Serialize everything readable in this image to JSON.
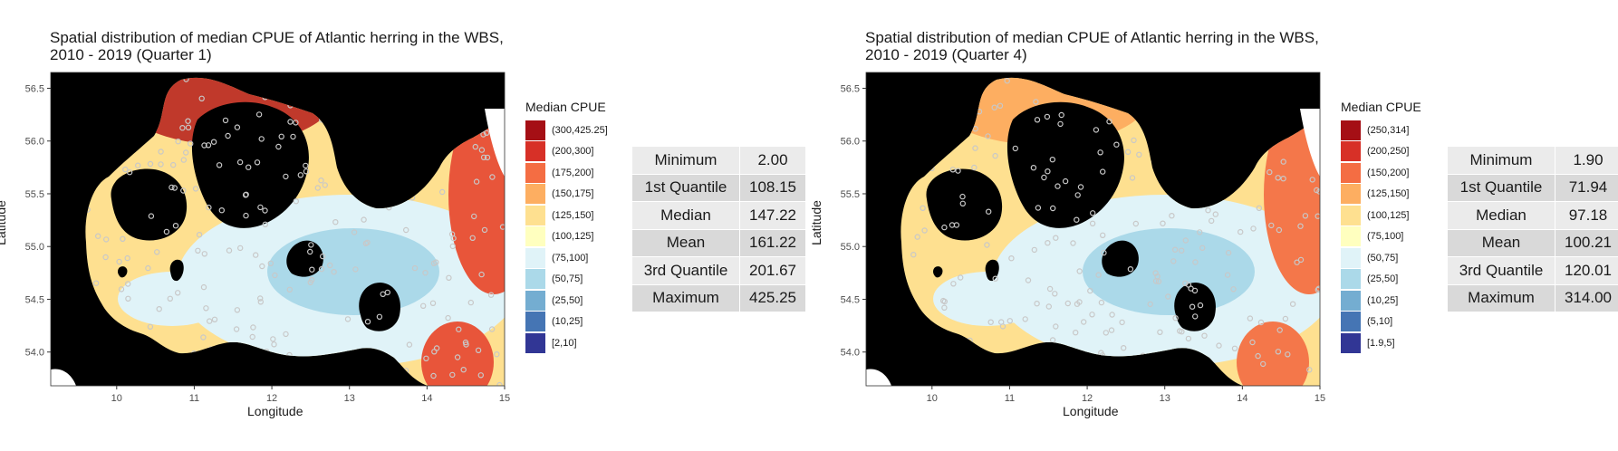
{
  "panels": [
    {
      "title_line1": "Spatial distribution of median CPUE of Atlantic herring in the WBS,",
      "title_line2": "2010 - 2019 (Quarter 1)",
      "xlabel": "Longitude",
      "ylabel": "Latitude",
      "x_ticks": [
        "10",
        "11",
        "12",
        "13",
        "14",
        "15"
      ],
      "y_ticks": [
        "56.5",
        "56.0",
        "55.5",
        "55.0",
        "54.5",
        "54.0"
      ],
      "legend_title": "Median CPUE",
      "legend": [
        {
          "label": "(300,425.25]",
          "color": "#a50f15"
        },
        {
          "label": "(200,300]",
          "color": "#d73027"
        },
        {
          "label": "(175,200]",
          "color": "#f46d43"
        },
        {
          "label": "(150,175]",
          "color": "#fdae61"
        },
        {
          "label": "(125,150]",
          "color": "#fee090"
        },
        {
          "label": "(100,125]",
          "color": "#ffffbf"
        },
        {
          "label": "(75,100]",
          "color": "#e0f3f8"
        },
        {
          "label": "(50,75]",
          "color": "#abd9e9"
        },
        {
          "label": "(25,50]",
          "color": "#74add1"
        },
        {
          "label": "(10,25]",
          "color": "#4575b4"
        },
        {
          "label": "[2,10]",
          "color": "#313695"
        }
      ],
      "stats": [
        {
          "name": "Minimum",
          "value": "2.00"
        },
        {
          "name": "1st Quantile",
          "value": "108.15"
        },
        {
          "name": "Median",
          "value": "147.22"
        },
        {
          "name": "Mean",
          "value": "161.22"
        },
        {
          "name": "3rd Quantile",
          "value": "201.67"
        },
        {
          "name": "Maximum",
          "value": "425.25"
        }
      ]
    },
    {
      "title_line1": "Spatial distribution of median CPUE of Atlantic herring in the WBS,",
      "title_line2": "2010 - 2019 (Quarter 4)",
      "xlabel": "Longitude",
      "ylabel": "Latitude",
      "x_ticks": [
        "10",
        "11",
        "12",
        "13",
        "14",
        "15"
      ],
      "y_ticks": [
        "56.5",
        "56.0",
        "55.5",
        "55.0",
        "54.5",
        "54.0"
      ],
      "legend_title": "Median CPUE",
      "legend": [
        {
          "label": "(250,314]",
          "color": "#a50f15"
        },
        {
          "label": "(200,250]",
          "color": "#d73027"
        },
        {
          "label": "(150,200]",
          "color": "#f46d43"
        },
        {
          "label": "(125,150]",
          "color": "#fdae61"
        },
        {
          "label": "(100,125]",
          "color": "#fee090"
        },
        {
          "label": "(75,100]",
          "color": "#ffffbf"
        },
        {
          "label": "(50,75]",
          "color": "#e0f3f8"
        },
        {
          "label": "(25,50]",
          "color": "#abd9e9"
        },
        {
          "label": "(10,25]",
          "color": "#74add1"
        },
        {
          "label": "(5,10]",
          "color": "#4575b4"
        },
        {
          "label": "[1.9,5]",
          "color": "#313695"
        }
      ],
      "stats": [
        {
          "name": "Minimum",
          "value": "1.90"
        },
        {
          "name": "1st Quantile",
          "value": "71.94"
        },
        {
          "name": "Median",
          "value": "97.18"
        },
        {
          "name": "Mean",
          "value": "100.21"
        },
        {
          "name": "3rd Quantile",
          "value": "120.01"
        },
        {
          "name": "Maximum",
          "value": "314.00"
        }
      ]
    }
  ],
  "colors": {
    "land": "#000000",
    "sea_outside": "#ffffff",
    "survey_points": "#c8c8c8",
    "q1_north": "#c0392b",
    "q1_east": "#e8553a",
    "q4_north": "#fdae61",
    "q4_east": "#f4774a",
    "mid": "#fee090",
    "center": "#e0f3f8",
    "core": "#abd9e9"
  }
}
